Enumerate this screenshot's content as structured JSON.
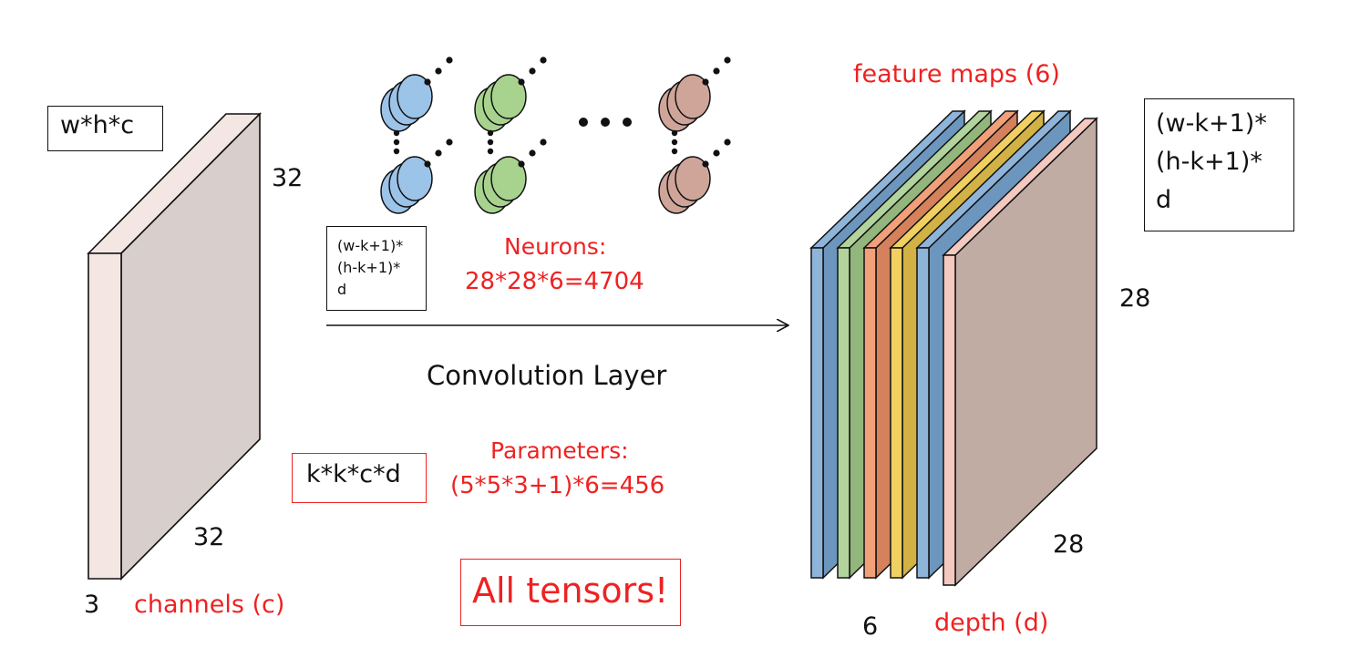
{
  "input": {
    "formula": "w*h*c",
    "height_label": "32",
    "width_label": "32",
    "channels_value": "3",
    "channels_label": "channels (c)",
    "face_color": "#f3e6e3",
    "side_color": "#d8cfcc"
  },
  "neurons_illustration": {
    "group_colors": [
      "#9cc3e8",
      "#a8d38e",
      "#cfa59a"
    ],
    "ellipsis_dots": "•••"
  },
  "small_formula_box": {
    "lines": [
      "(w-k+1)*",
      "(h-k+1)*",
      "d"
    ]
  },
  "neurons": {
    "title": "Neurons:",
    "formula": "28*28*6=4704"
  },
  "arrow": {
    "label": "Convolution Layer"
  },
  "parameters": {
    "box_formula": "k*k*c*d",
    "title": "Parameters:",
    "formula": "(5*5*3+1)*6=456"
  },
  "tensors_box": {
    "text": "All tensors!"
  },
  "feature_maps": {
    "title": "feature maps (6)",
    "height_label": "28",
    "width_label": "28",
    "depth_value": "6",
    "depth_label": "depth (d)",
    "layer_colors": [
      "#8fb4d9",
      "#b3d39c",
      "#f2a07a",
      "#f0d060",
      "#8fb4d9",
      "#f4c9c0"
    ],
    "layer_dark_colors": [
      "#6d96be",
      "#93b67c",
      "#d4815c",
      "#d2b244",
      "#6d96be",
      "#c2aaa3"
    ]
  },
  "output_formula_box": {
    "lines": [
      "(w-k+1)*",
      "(h-k+1)*",
      "d"
    ]
  },
  "accent_red": "#ee2222"
}
